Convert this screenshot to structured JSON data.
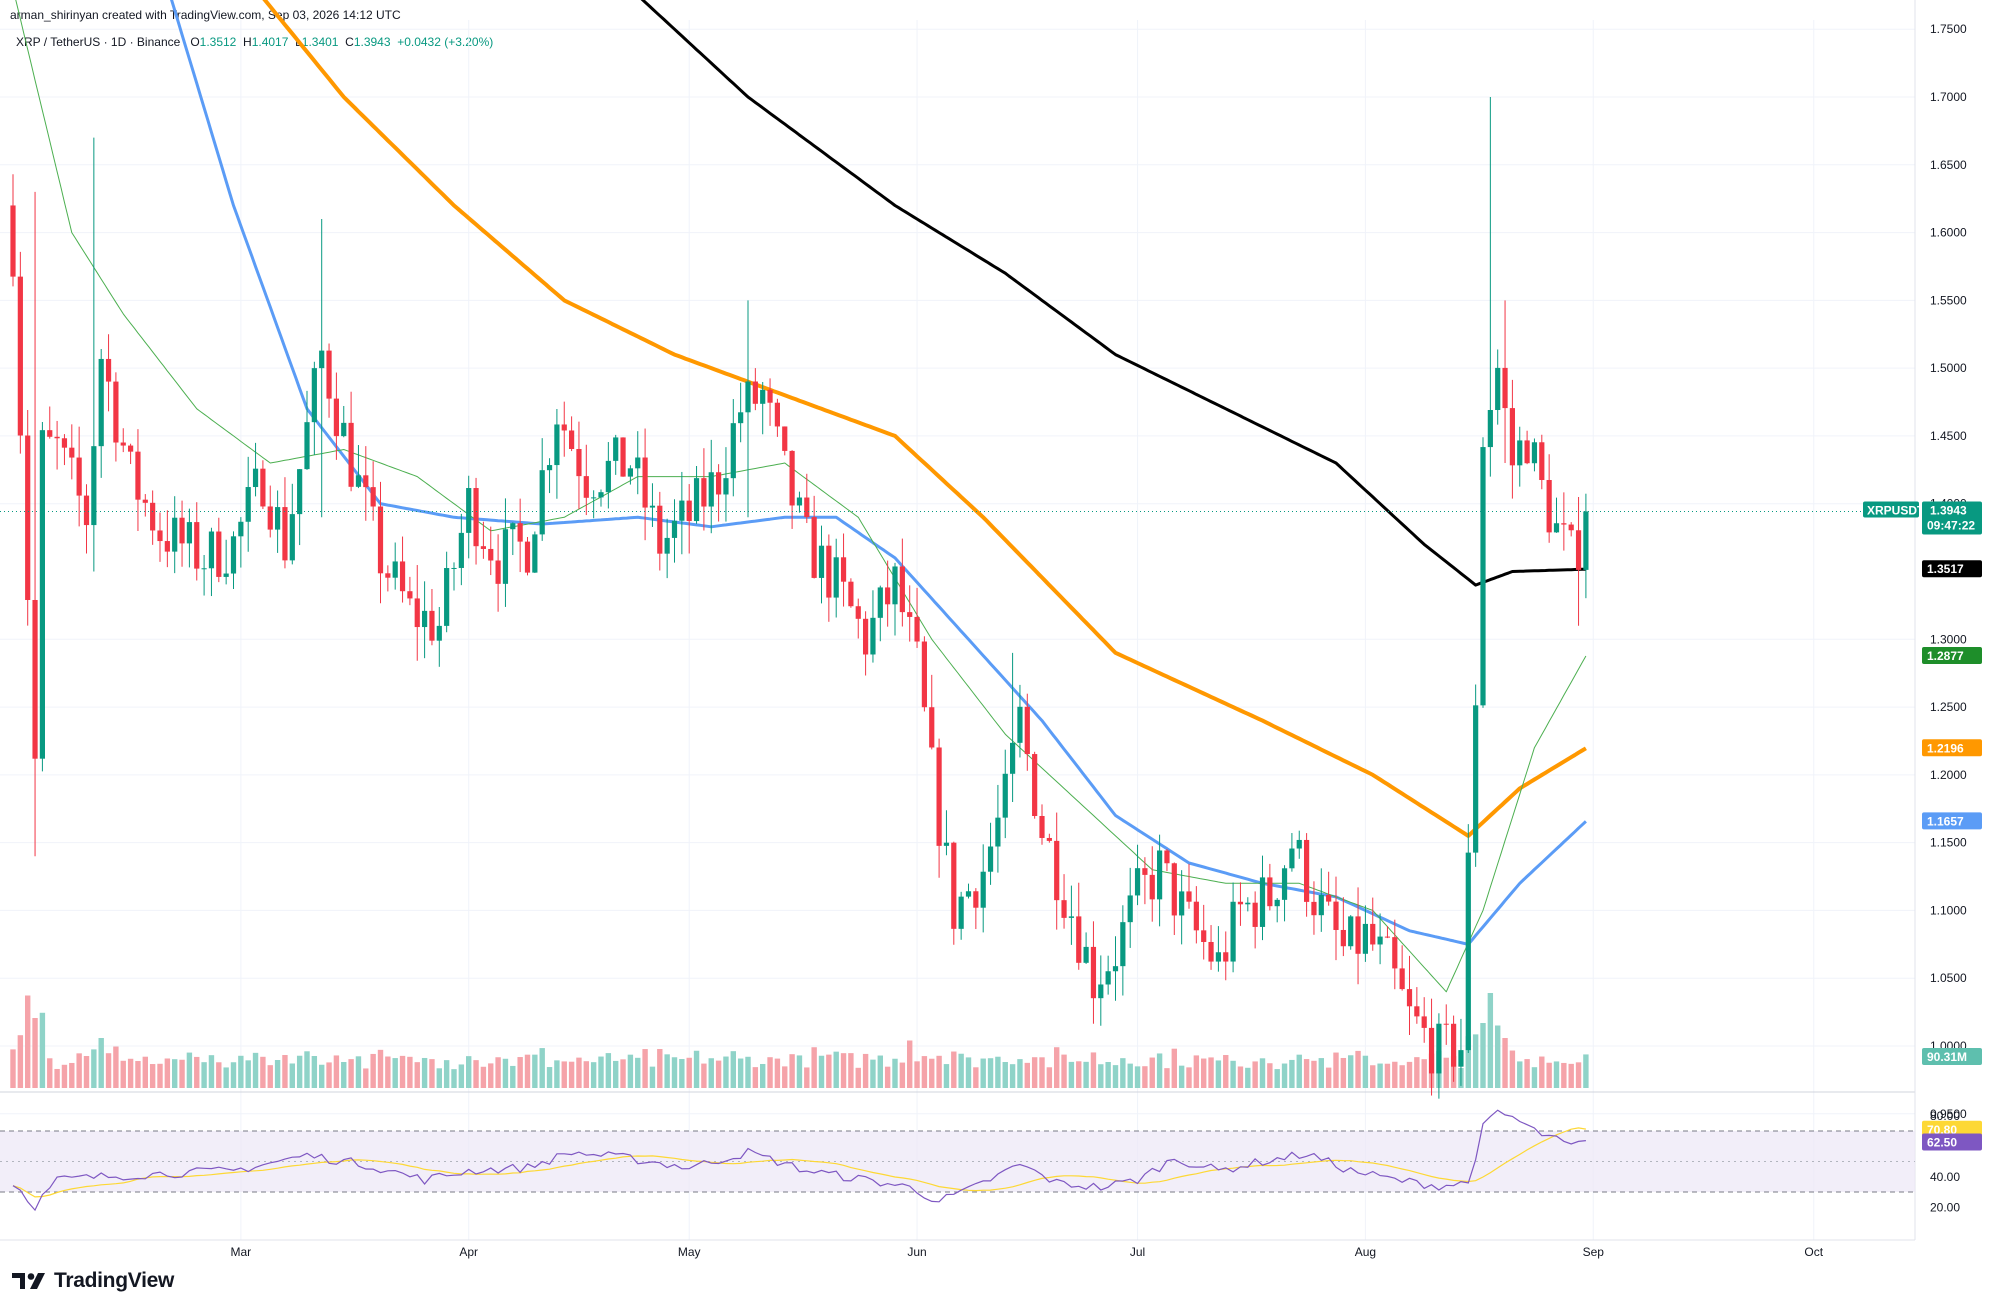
{
  "header": {
    "credit": "arman_shirinyan created with TradingView.com, Sep 03, 2026 14:12 UTC"
  },
  "symbol": {
    "name": "XRP / TetherUS · 1D · Binance",
    "open_label": "O",
    "open": "1.3512",
    "high_label": "H",
    "high": "1.4017",
    "low_label": "L",
    "low": "1.3401",
    "close_label": "C",
    "close": "1.3943",
    "change": "+0.0432 (+3.20%)"
  },
  "footer": {
    "brand": "TradingView"
  },
  "colors": {
    "up": "#089981",
    "down": "#f23645",
    "vol_up": "#8fd3c8",
    "vol_down": "#f5a3a9",
    "ma_black": "#000000",
    "ma_orange": "#ff9800",
    "ma_blue": "#5b9cf6",
    "ma_green": "#4caf50",
    "rsi_line": "#7e57c2",
    "rsi_ma": "#fdd835",
    "rsi_band": "#ede7f6"
  },
  "chart_data": {
    "type": "candlestick",
    "pair": "XRPUSDT",
    "interval": "1D",
    "y_ticks": [
      "1.7500",
      "1.7000",
      "1.6500",
      "1.6000",
      "1.5500",
      "1.5000",
      "1.4500",
      "1.4000",
      "1.3000",
      "1.2500",
      "1.2000",
      "1.1500",
      "1.1000",
      "1.0500",
      "1.0000",
      "0.9500"
    ],
    "ylim": [
      0.935,
      1.79
    ],
    "x_labels": [
      {
        "label": "Mar",
        "day": 31
      },
      {
        "label": "Apr",
        "day": 62
      },
      {
        "label": "May",
        "day": 92
      },
      {
        "label": "Jun",
        "day": 123
      },
      {
        "label": "Jul",
        "day": 153
      },
      {
        "label": "Aug",
        "day": 184
      },
      {
        "label": "Sep",
        "day": 215
      },
      {
        "label": "Oct",
        "day": 245
      }
    ],
    "first_day": 0,
    "days_visible": 263,
    "last_price_label": {
      "symbol": "XRPUSDT",
      "price": "1.3943",
      "countdown": "09:47:22"
    },
    "ma_labels": [
      {
        "name": "MA black",
        "value": "1.3517",
        "price": 1.3517
      },
      {
        "name": "MA green",
        "value": "1.2877",
        "price": 1.2877
      },
      {
        "name": "MA orange",
        "value": "1.2196",
        "price": 1.2196
      },
      {
        "name": "MA blue",
        "value": "1.1657",
        "price": 1.1657
      }
    ],
    "volume_label": "90.31M",
    "rsi": {
      "ticks": [
        "80.00",
        "40.00",
        "20.00"
      ],
      "value": "62.50",
      "ma_value": "70.80",
      "upper": 70,
      "lower": 30,
      "mid": 50,
      "ylim": [
        15,
        85
      ]
    },
    "anchors": [
      {
        "day": 0,
        "close": 1.59
      },
      {
        "day": 3,
        "close": 1.21
      },
      {
        "day": 4,
        "close": 1.44
      },
      {
        "day": 6,
        "close": 1.44
      },
      {
        "day": 10,
        "close": 1.39
      },
      {
        "day": 12,
        "close": 1.51
      },
      {
        "day": 16,
        "close": 1.42
      },
      {
        "day": 20,
        "close": 1.38
      },
      {
        "day": 26,
        "close": 1.36
      },
      {
        "day": 30,
        "close": 1.37
      },
      {
        "day": 34,
        "close": 1.42
      },
      {
        "day": 37,
        "close": 1.37
      },
      {
        "day": 42,
        "close": 1.51
      },
      {
        "day": 46,
        "close": 1.43
      },
      {
        "day": 50,
        "close": 1.36
      },
      {
        "day": 54,
        "close": 1.32
      },
      {
        "day": 58,
        "close": 1.31
      },
      {
        "day": 62,
        "close": 1.4
      },
      {
        "day": 66,
        "close": 1.36
      },
      {
        "day": 70,
        "close": 1.37
      },
      {
        "day": 74,
        "close": 1.47
      },
      {
        "day": 78,
        "close": 1.42
      },
      {
        "day": 84,
        "close": 1.43
      },
      {
        "day": 88,
        "close": 1.37
      },
      {
        "day": 92,
        "close": 1.39
      },
      {
        "day": 96,
        "close": 1.42
      },
      {
        "day": 99,
        "close": 1.47
      },
      {
        "day": 102,
        "close": 1.48
      },
      {
        "day": 105,
        "close": 1.42
      },
      {
        "day": 108,
        "close": 1.37
      },
      {
        "day": 112,
        "close": 1.34
      },
      {
        "day": 116,
        "close": 1.3
      },
      {
        "day": 120,
        "close": 1.34
      },
      {
        "day": 123,
        "close": 1.28
      },
      {
        "day": 125,
        "close": 1.2
      },
      {
        "day": 128,
        "close": 1.1
      },
      {
        "day": 132,
        "close": 1.13
      },
      {
        "day": 135,
        "close": 1.18
      },
      {
        "day": 137,
        "close": 1.24
      },
      {
        "day": 140,
        "close": 1.16
      },
      {
        "day": 144,
        "close": 1.1
      },
      {
        "day": 147,
        "close": 1.05
      },
      {
        "day": 150,
        "close": 1.07
      },
      {
        "day": 153,
        "close": 1.11
      },
      {
        "day": 156,
        "close": 1.13
      },
      {
        "day": 160,
        "close": 1.09
      },
      {
        "day": 164,
        "close": 1.06
      },
      {
        "day": 167,
        "close": 1.1
      },
      {
        "day": 171,
        "close": 1.11
      },
      {
        "day": 174,
        "close": 1.15
      },
      {
        "day": 177,
        "close": 1.11
      },
      {
        "day": 181,
        "close": 1.07
      },
      {
        "day": 184,
        "close": 1.08
      },
      {
        "day": 187,
        "close": 1.06
      },
      {
        "day": 190,
        "close": 1.02
      },
      {
        "day": 194,
        "close": 0.995
      },
      {
        "day": 197,
        "close": 1.0
      },
      {
        "day": 199,
        "close": 1.26
      },
      {
        "day": 200,
        "close": 1.45
      },
      {
        "day": 202,
        "close": 1.5
      },
      {
        "day": 204,
        "close": 1.43
      },
      {
        "day": 206,
        "close": 1.45
      },
      {
        "day": 208,
        "close": 1.41
      },
      {
        "day": 210,
        "close": 1.38
      },
      {
        "day": 212,
        "close": 1.36
      },
      {
        "day": 213,
        "close": 1.3512
      },
      {
        "day": 214,
        "close": 1.3943
      }
    ],
    "spikes": [
      {
        "day": 3,
        "high": 1.63,
        "low": 1.14
      },
      {
        "day": 11,
        "high": 1.67,
        "low": 1.35
      },
      {
        "day": 42,
        "high": 1.61,
        "low": 1.39
      },
      {
        "day": 100,
        "high": 1.55,
        "low": 1.39
      },
      {
        "day": 136,
        "high": 1.29,
        "low": 1.18
      },
      {
        "day": 201,
        "high": 1.7,
        "low": 1.42
      },
      {
        "day": 203,
        "high": 1.55,
        "low": 1.43
      },
      {
        "day": 197,
        "high": 1.02,
        "low": 0.985
      },
      {
        "day": 213,
        "high": 1.36,
        "low": 1.31
      },
      {
        "day": 214,
        "high": 1.4017,
        "low": 1.3401
      }
    ],
    "ma_series": {
      "black": [
        {
          "day": 77,
          "v": 1.815
        },
        {
          "day": 100,
          "v": 1.7
        },
        {
          "day": 120,
          "v": 1.62
        },
        {
          "day": 135,
          "v": 1.57
        },
        {
          "day": 150,
          "v": 1.51
        },
        {
          "day": 165,
          "v": 1.47
        },
        {
          "day": 180,
          "v": 1.43
        },
        {
          "day": 192,
          "v": 1.37
        },
        {
          "day": 199,
          "v": 1.34
        },
        {
          "day": 204,
          "v": 1.35
        },
        {
          "day": 214,
          "v": 1.3517
        }
      ],
      "orange": [
        {
          "day": 30,
          "v": 1.8
        },
        {
          "day": 45,
          "v": 1.7
        },
        {
          "day": 60,
          "v": 1.62
        },
        {
          "day": 75,
          "v": 1.55
        },
        {
          "day": 90,
          "v": 1.51
        },
        {
          "day": 105,
          "v": 1.48
        },
        {
          "day": 120,
          "v": 1.45
        },
        {
          "day": 132,
          "v": 1.39
        },
        {
          "day": 150,
          "v": 1.29
        },
        {
          "day": 170,
          "v": 1.24
        },
        {
          "day": 185,
          "v": 1.2
        },
        {
          "day": 198,
          "v": 1.155
        },
        {
          "day": 205,
          "v": 1.19
        },
        {
          "day": 214,
          "v": 1.2196
        }
      ],
      "blue": [
        {
          "day": 20,
          "v": 1.8
        },
        {
          "day": 30,
          "v": 1.62
        },
        {
          "day": 40,
          "v": 1.47
        },
        {
          "day": 50,
          "v": 1.4
        },
        {
          "day": 60,
          "v": 1.39
        },
        {
          "day": 72,
          "v": 1.385
        },
        {
          "day": 85,
          "v": 1.39
        },
        {
          "day": 95,
          "v": 1.383
        },
        {
          "day": 105,
          "v": 1.39
        },
        {
          "day": 112,
          "v": 1.39
        },
        {
          "day": 120,
          "v": 1.36
        },
        {
          "day": 130,
          "v": 1.3
        },
        {
          "day": 140,
          "v": 1.24
        },
        {
          "day": 150,
          "v": 1.17
        },
        {
          "day": 160,
          "v": 1.135
        },
        {
          "day": 170,
          "v": 1.12
        },
        {
          "day": 180,
          "v": 1.11
        },
        {
          "day": 190,
          "v": 1.085
        },
        {
          "day": 198,
          "v": 1.075
        },
        {
          "day": 205,
          "v": 1.12
        },
        {
          "day": 214,
          "v": 1.1657
        }
      ],
      "green": [
        {
          "day": 0,
          "v": 1.78
        },
        {
          "day": 8,
          "v": 1.6
        },
        {
          "day": 15,
          "v": 1.54
        },
        {
          "day": 25,
          "v": 1.47
        },
        {
          "day": 35,
          "v": 1.43
        },
        {
          "day": 45,
          "v": 1.44
        },
        {
          "day": 55,
          "v": 1.42
        },
        {
          "day": 65,
          "v": 1.38
        },
        {
          "day": 75,
          "v": 1.39
        },
        {
          "day": 85,
          "v": 1.42
        },
        {
          "day": 95,
          "v": 1.42
        },
        {
          "day": 105,
          "v": 1.43
        },
        {
          "day": 115,
          "v": 1.39
        },
        {
          "day": 125,
          "v": 1.3
        },
        {
          "day": 135,
          "v": 1.23
        },
        {
          "day": 145,
          "v": 1.18
        },
        {
          "day": 155,
          "v": 1.13
        },
        {
          "day": 165,
          "v": 1.12
        },
        {
          "day": 175,
          "v": 1.12
        },
        {
          "day": 185,
          "v": 1.1
        },
        {
          "day": 195,
          "v": 1.04
        },
        {
          "day": 200,
          "v": 1.1
        },
        {
          "day": 207,
          "v": 1.22
        },
        {
          "day": 214,
          "v": 1.2877
        }
      ]
    },
    "volume_spikes": [
      {
        "day": 200,
        "v": 1.3
      },
      {
        "day": 201,
        "v": 1.9
      },
      {
        "day": 202,
        "v": 1.25
      },
      {
        "day": 203,
        "v": 1.0
      },
      {
        "day": 2,
        "v": 1.85
      },
      {
        "day": 3,
        "v": 1.4
      },
      {
        "day": 12,
        "v": 1.0
      },
      {
        "day": 122,
        "v": 0.95
      }
    ],
    "rsi_anchors": [
      {
        "day": 0,
        "v": 36
      },
      {
        "day": 3,
        "v": 21
      },
      {
        "day": 6,
        "v": 38
      },
      {
        "day": 12,
        "v": 40
      },
      {
        "day": 20,
        "v": 42
      },
      {
        "day": 30,
        "v": 44
      },
      {
        "day": 40,
        "v": 54
      },
      {
        "day": 48,
        "v": 48
      },
      {
        "day": 56,
        "v": 38
      },
      {
        "day": 62,
        "v": 44
      },
      {
        "day": 70,
        "v": 46
      },
      {
        "day": 76,
        "v": 56
      },
      {
        "day": 84,
        "v": 52
      },
      {
        "day": 92,
        "v": 46
      },
      {
        "day": 100,
        "v": 56
      },
      {
        "day": 108,
        "v": 44
      },
      {
        "day": 116,
        "v": 38
      },
      {
        "day": 122,
        "v": 33
      },
      {
        "day": 126,
        "v": 24
      },
      {
        "day": 130,
        "v": 31
      },
      {
        "day": 137,
        "v": 48
      },
      {
        "day": 142,
        "v": 36
      },
      {
        "day": 148,
        "v": 33
      },
      {
        "day": 153,
        "v": 38
      },
      {
        "day": 158,
        "v": 52
      },
      {
        "day": 164,
        "v": 44
      },
      {
        "day": 170,
        "v": 50
      },
      {
        "day": 176,
        "v": 55
      },
      {
        "day": 182,
        "v": 44
      },
      {
        "day": 188,
        "v": 38
      },
      {
        "day": 194,
        "v": 34
      },
      {
        "day": 198,
        "v": 36
      },
      {
        "day": 200,
        "v": 72
      },
      {
        "day": 202,
        "v": 82
      },
      {
        "day": 204,
        "v": 79
      },
      {
        "day": 207,
        "v": 70
      },
      {
        "day": 210,
        "v": 64
      },
      {
        "day": 212,
        "v": 60
      },
      {
        "day": 214,
        "v": 62.5
      }
    ]
  }
}
